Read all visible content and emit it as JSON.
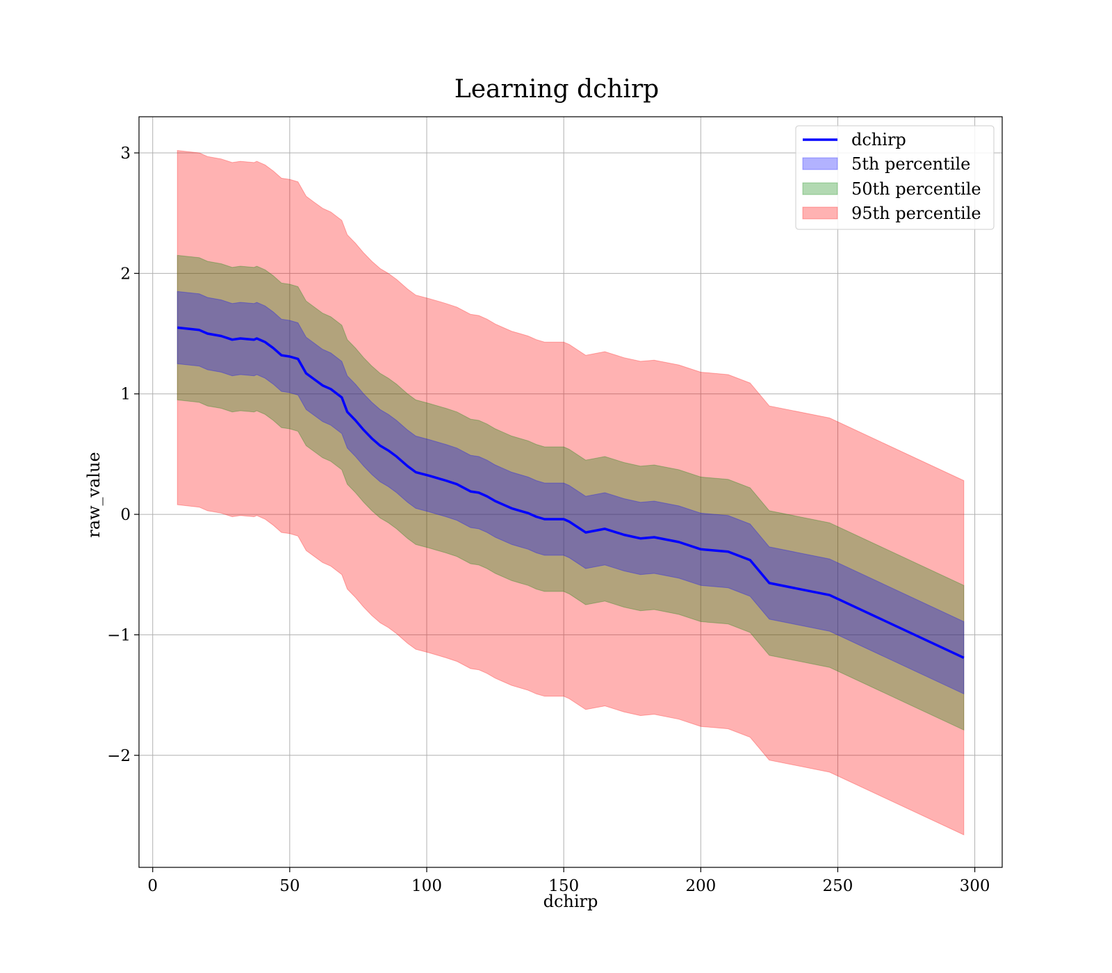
{
  "chart_data": {
    "type": "line",
    "title": "Learning dchirp",
    "xlabel": "dchirp",
    "ylabel": "raw_value",
    "xlim": [
      -5,
      310
    ],
    "ylim": [
      -2.93,
      3.3
    ],
    "xticks": [
      0,
      50,
      100,
      150,
      200,
      250,
      300
    ],
    "yticks": [
      -2,
      -1,
      0,
      1,
      2,
      3
    ],
    "xtick_labels": [
      "0",
      "50",
      "100",
      "150",
      "200",
      "250",
      "300"
    ],
    "ytick_labels": [
      "−2",
      "−1",
      "0",
      "1",
      "2",
      "3"
    ],
    "grid": true,
    "legend_position": "top-right",
    "x": [
      9,
      17,
      20,
      25,
      29,
      32,
      37,
      38,
      41,
      44,
      47,
      50,
      53,
      56,
      59,
      62,
      65,
      69,
      71,
      74,
      77,
      80,
      83,
      86,
      89,
      93,
      96,
      101,
      104,
      107,
      111,
      116,
      119,
      122,
      125,
      128,
      131,
      134,
      137,
      140,
      143,
      146,
      150,
      152,
      158,
      165,
      172,
      178,
      183,
      192,
      200,
      210,
      218,
      225,
      247,
      296
    ],
    "series": [
      {
        "name": "dchirp",
        "color": "#0000ff",
        "values": [
          1.55,
          1.53,
          1.5,
          1.48,
          1.45,
          1.46,
          1.45,
          1.46,
          1.43,
          1.38,
          1.32,
          1.31,
          1.29,
          1.17,
          1.12,
          1.07,
          1.04,
          0.97,
          0.85,
          0.78,
          0.7,
          0.63,
          0.57,
          0.53,
          0.48,
          0.4,
          0.35,
          0.32,
          0.3,
          0.28,
          0.25,
          0.19,
          0.18,
          0.15,
          0.11,
          0.08,
          0.05,
          0.03,
          0.01,
          -0.02,
          -0.04,
          -0.04,
          -0.04,
          -0.06,
          -0.15,
          -0.12,
          -0.17,
          -0.2,
          -0.19,
          -0.23,
          -0.29,
          -0.31,
          -0.38,
          -0.57,
          -0.67,
          -1.19
        ]
      }
    ],
    "bands": [
      {
        "name": "5th percentile",
        "color": "#0000ff",
        "opacity": 0.3,
        "halfwidth": 0.3
      },
      {
        "name": "50th percentile",
        "color": "#008000",
        "opacity": 0.3,
        "halfwidth": 0.6
      },
      {
        "name": "95th percentile",
        "color": "#ff0000",
        "opacity": 0.3,
        "halfwidth": 1.47
      }
    ]
  }
}
